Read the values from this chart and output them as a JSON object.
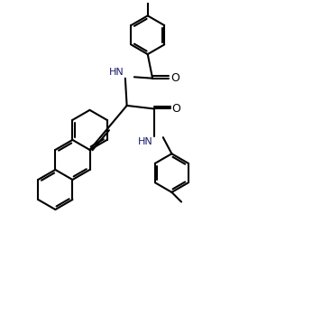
{
  "bg_color": "#ffffff",
  "line_color": "#000000",
  "text_color": "#000000",
  "hn_color": "#1a1a6e",
  "line_width": 1.5,
  "figsize": [
    3.67,
    3.61
  ],
  "dpi": 100,
  "xlim": [
    0,
    10
  ],
  "ylim": [
    0,
    10
  ],
  "bond_r": 0.6
}
